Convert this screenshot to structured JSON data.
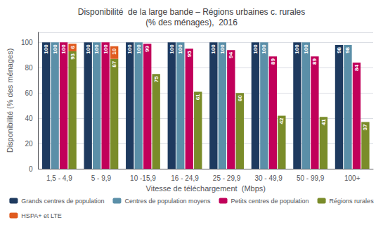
{
  "chart_data": {
    "type": "bar",
    "title": "Disponibilité  de la large bande – Régions urbaines c. rurales\n(% des ménages),  2016",
    "xlabel": "Vitesse de téléchargement  (Mbps)",
    "ylabel": "Disponibilité (% des ménages)",
    "categories": [
      "1,5 - 4,9",
      "5 - 9,9",
      "10 -15,9",
      "16 - 24,9",
      "25 - 29,9",
      "30 - 49,9",
      "50 - 99,9",
      "100+"
    ],
    "series": [
      {
        "name": "Grands centres de population",
        "color": "#1e3a5f",
        "values": [
          100,
          100,
          100,
          100,
          100,
          100,
          100,
          98
        ]
      },
      {
        "name": "Centres de population moyens",
        "color": "#5b8fa8",
        "values": [
          100,
          100,
          100,
          100,
          100,
          100,
          100,
          98
        ]
      },
      {
        "name": "Petits centres de population",
        "color": "#c1005a",
        "values": [
          100,
          100,
          99,
          95,
          94,
          89,
          89,
          84
        ]
      },
      {
        "name": "Régions rurales",
        "color": "#7a8c2a",
        "values": [
          93,
          87,
          75,
          61,
          60,
          42,
          41,
          37
        ]
      },
      {
        "name": "HSPA+ et LTE",
        "color": "#e05a1e",
        "values": [
          6,
          10,
          0,
          0,
          0,
          0,
          0,
          0
        ]
      }
    ],
    "stacked": [
      "Régions rurales",
      "HSPA+ et LTE"
    ],
    "ylim": [
      0,
      108
    ],
    "yticks": [
      0,
      20,
      40,
      60,
      80,
      100
    ],
    "grid": true,
    "legend": "bottom",
    "data_labels": true
  }
}
